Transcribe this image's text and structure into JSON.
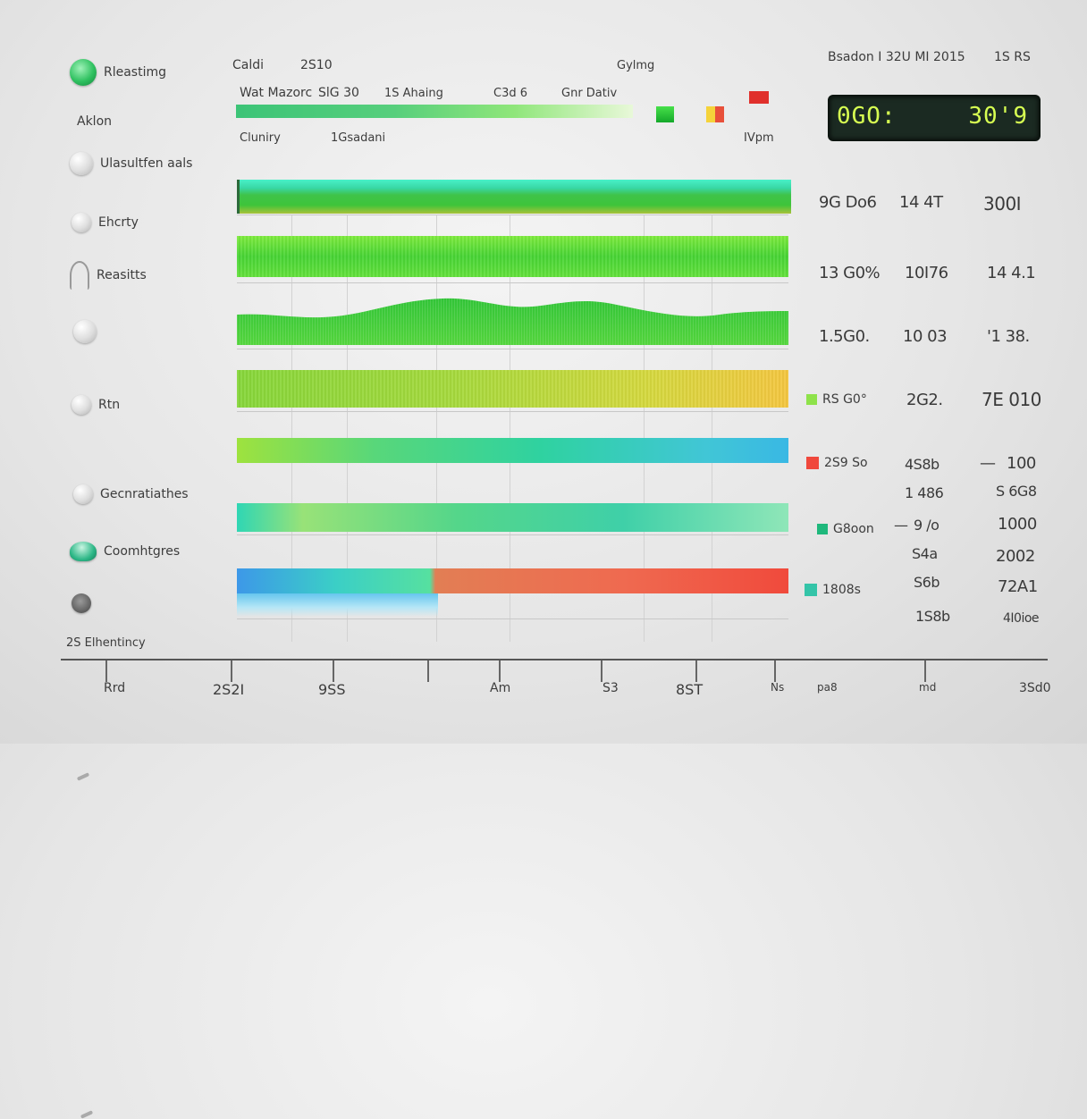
{
  "sidebar": {
    "items": [
      {
        "label": "Rleastimg"
      },
      {
        "label": "Aklon"
      },
      {
        "label": "Ulasultfen aals"
      },
      {
        "label": "Ehcrty"
      },
      {
        "label": "Reasitts"
      },
      {
        "label": ""
      },
      {
        "label": "Rtn"
      },
      {
        "label": ""
      },
      {
        "label": "Gecnratiathes"
      },
      {
        "label": "Coomhtgres"
      },
      {
        "label": ""
      }
    ],
    "footer": "2S Elhentincy"
  },
  "header": {
    "row1": [
      "Caldi",
      "2S10",
      "Gylmg"
    ],
    "row2": [
      "Wat Mazorc",
      "SlG 30",
      "1S Ahaing",
      "C3d 6",
      "Gnr Dativ"
    ],
    "row3": [
      "Cluniry",
      "1Gsadani",
      "IVpm"
    ],
    "top_right": "Bsadon I 32U MI 2015",
    "top_right_2": "1S RS"
  },
  "lcd": {
    "left": "0GO:",
    "right": "30'9",
    "color": "#d7ff52"
  },
  "rows": [
    {
      "tag": "",
      "tag_color": "",
      "c1": "9G Do6",
      "c2": "14 4T",
      "c3": "300I"
    },
    {
      "tag": "",
      "tag_color": "",
      "c1": "13 G0%",
      "c2": "10I76",
      "c3": "14 4.1"
    },
    {
      "tag": "",
      "tag_color": "",
      "c1": "1.5G0.",
      "c2": "10 03",
      "c3": "'1 38."
    },
    {
      "tag": "RS G0°",
      "tag_color": "#8ee24a",
      "c1": "",
      "c2": "2G2.",
      "c3": "7E 010"
    },
    {
      "tag": "2S9 So",
      "tag_color": "#f0483c",
      "c1": "",
      "c2": "4S8b",
      "c3": "100"
    },
    {
      "tag": "",
      "tag_color": "",
      "c1": "",
      "c2": "1 486",
      "c3": "S 6G8"
    },
    {
      "tag": "G8oon",
      "tag_color": "#1fb87c",
      "c1": "",
      "c2": "9 /o",
      "c3": "1000"
    },
    {
      "tag": "",
      "tag_color": "",
      "c1": "",
      "c2": "S4a",
      "c3": "2002"
    },
    {
      "tag": "1808s",
      "tag_color": "#34c4a8",
      "c1": "",
      "c2": "S6b",
      "c3": "72A1"
    },
    {
      "tag": "",
      "tag_color": "",
      "c1": "",
      "c2": "1S8b",
      "c3": "4I0ioe"
    }
  ],
  "axis": {
    "labels": [
      "Rrd",
      "2S2I",
      "9SS",
      "Am",
      "S3",
      "8ST",
      "Ns",
      "pa8",
      "md",
      "3Sd0"
    ]
  },
  "colors": {
    "accent_green": "#3ec43a",
    "accent_red": "#f04a3c",
    "lcd_text": "#d7ff52"
  }
}
